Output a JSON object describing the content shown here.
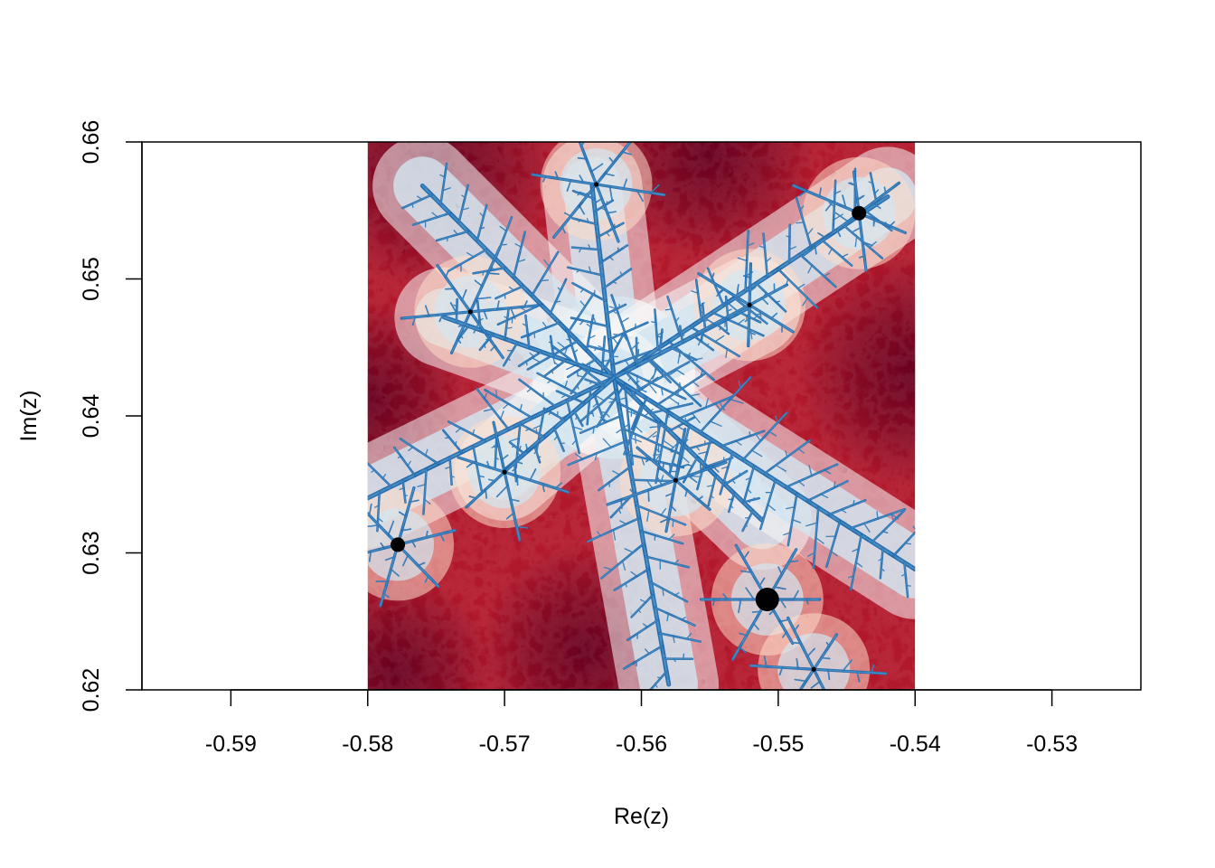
{
  "chart_data": {
    "type": "heatmap",
    "title": "",
    "xlabel": "Re(z)",
    "ylabel": "Im(z)",
    "xlim": [
      -0.5965,
      -0.5235
    ],
    "ylim": [
      0.62,
      0.66
    ],
    "x_ticks": [
      {
        "value": -0.59,
        "label": "-0.59"
      },
      {
        "value": -0.58,
        "label": "-0.58"
      },
      {
        "value": -0.57,
        "label": "-0.57"
      },
      {
        "value": -0.56,
        "label": "-0.56"
      },
      {
        "value": -0.55,
        "label": "-0.55"
      },
      {
        "value": -0.54,
        "label": "-0.54"
      },
      {
        "value": -0.53,
        "label": "-0.53"
      }
    ],
    "y_ticks": [
      {
        "value": 0.62,
        "label": "0.62"
      },
      {
        "value": 0.63,
        "label": "0.63"
      },
      {
        "value": 0.64,
        "label": "0.64"
      },
      {
        "value": 0.65,
        "label": "0.65"
      },
      {
        "value": 0.66,
        "label": "0.66"
      }
    ],
    "image_extent": {
      "re": [
        -0.58,
        -0.54
      ],
      "im": [
        0.62,
        0.66
      ]
    },
    "description": "Julia set fractal image",
    "colormap": [
      "#67001f",
      "#b2182b",
      "#d6604d",
      "#f4a582",
      "#fddbc7",
      "#f7f7f7",
      "#d1e5f0",
      "#92c5de",
      "#4393c3",
      "#2166ac",
      "#053061"
    ],
    "interior_color": "#000000",
    "grid": false,
    "legend": "none",
    "dense_points": [
      {
        "re": -0.5508,
        "im": 0.6266
      },
      {
        "re": -0.5441,
        "im": 0.6548
      },
      {
        "re": -0.5778,
        "im": 0.6306
      },
      {
        "re": -0.5633,
        "im": 0.6569
      },
      {
        "re": -0.5521,
        "im": 0.6481
      },
      {
        "re": -0.5725,
        "im": 0.6476
      },
      {
        "re": -0.57,
        "im": 0.6359
      },
      {
        "re": -0.5575,
        "im": 0.6353
      },
      {
        "re": -0.5474,
        "im": 0.6215
      }
    ]
  }
}
